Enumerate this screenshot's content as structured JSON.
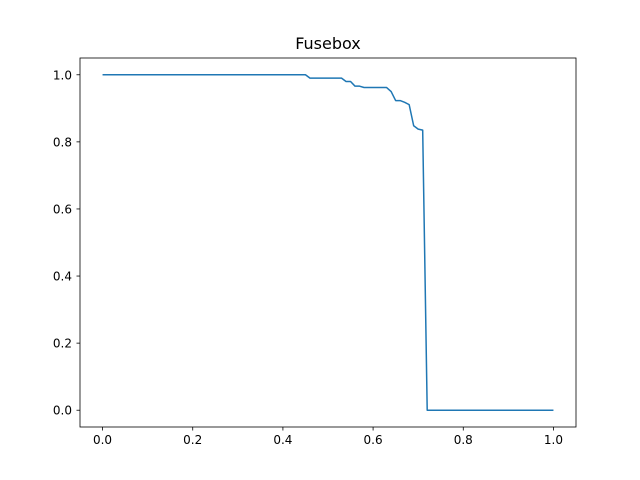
{
  "chart_data": {
    "type": "line",
    "title": "Fusebox",
    "xlabel": "",
    "ylabel": "",
    "xlim": [
      -0.05,
      1.05
    ],
    "ylim": [
      -0.05,
      1.05
    ],
    "grid": false,
    "x_ticks": [
      "0.0",
      "0.2",
      "0.4",
      "0.6",
      "0.8",
      "1.0"
    ],
    "y_ticks": [
      "0.0",
      "0.2",
      "0.4",
      "0.6",
      "0.8",
      "1.0"
    ],
    "series": [
      {
        "color": "#1f77b4",
        "x": [
          0.0,
          0.45,
          0.46,
          0.53,
          0.54,
          0.55,
          0.56,
          0.57,
          0.58,
          0.63,
          0.64,
          0.65,
          0.66,
          0.67,
          0.68,
          0.69,
          0.7,
          0.71,
          0.72,
          1.0
        ],
        "y": [
          1.0,
          1.0,
          0.99,
          0.99,
          0.98,
          0.98,
          0.966,
          0.966,
          0.962,
          0.962,
          0.95,
          0.923,
          0.923,
          0.918,
          0.911,
          0.848,
          0.838,
          0.835,
          0.0,
          0.0
        ]
      }
    ]
  }
}
